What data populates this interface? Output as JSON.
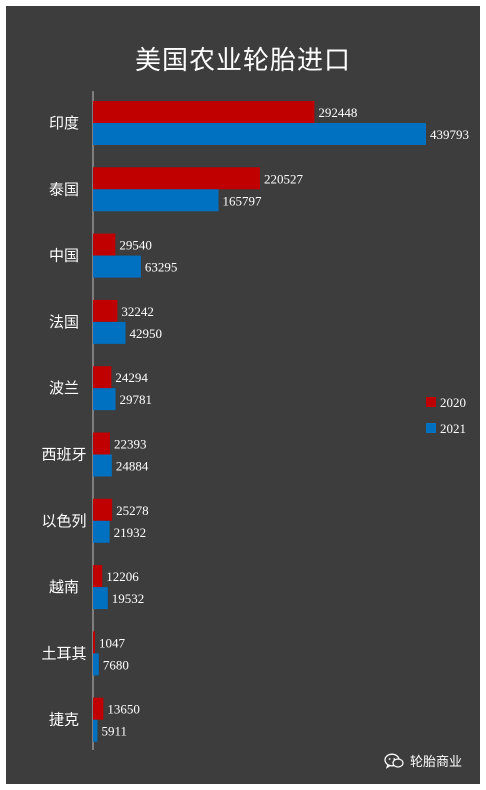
{
  "colors": {
    "background": "#3d3d3d",
    "series_2020": "#c00000",
    "series_2021": "#0070c0"
  },
  "watermark": {
    "text": "轮胎商业",
    "icon": "wechat-icon"
  },
  "chart_data": {
    "type": "bar",
    "orientation": "horizontal",
    "title": "美国农业轮胎进口",
    "categories": [
      "印度",
      "泰国",
      "中国",
      "法国",
      "波兰",
      "西班牙",
      "以色列",
      "越南",
      "土耳其",
      "捷克"
    ],
    "series": [
      {
        "name": "2020",
        "values": [
          292448,
          220527,
          29540,
          32242,
          24294,
          22393,
          25278,
          12206,
          1047,
          13650
        ]
      },
      {
        "name": "2021",
        "values": [
          439793,
          165797,
          63295,
          42950,
          29781,
          24884,
          21932,
          19532,
          7680,
          5911
        ]
      }
    ],
    "xlim": [
      0,
      439793
    ],
    "grid": false,
    "legend_position": "right",
    "data_labels": true
  }
}
